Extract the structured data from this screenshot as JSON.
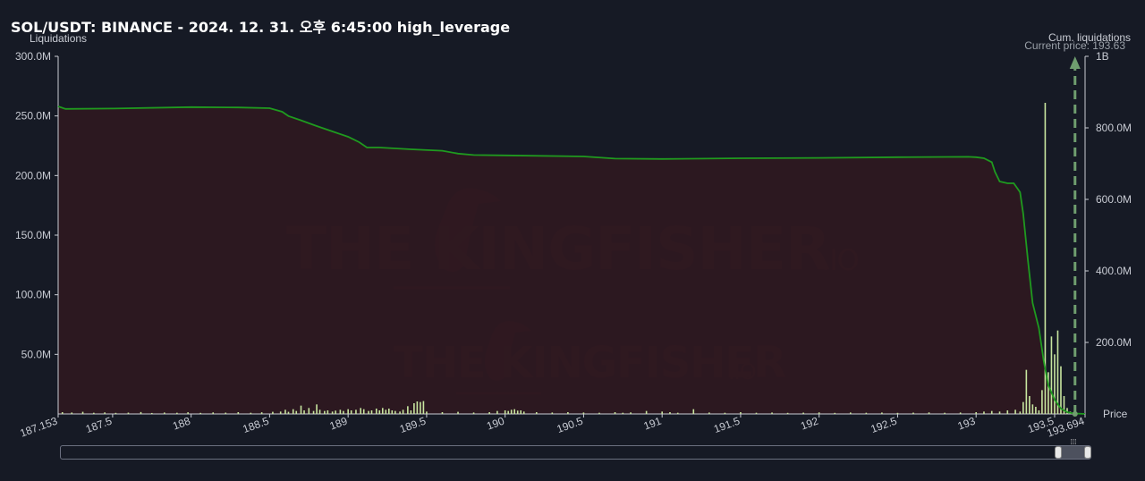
{
  "title": "SOL/USDT: BINANCE - 2024. 12. 31. 오후 6:45:00 high_leverage",
  "y_left_title": "Liquidations",
  "y_right_title": "Cum. liquidations",
  "x_axis_title": "Price",
  "current_price_label": "Current price: 193.63",
  "watermark_text": "THE KINGFISHER",
  "watermark_suffix": ".IO",
  "colors": {
    "background": "#161a25",
    "area_fill": "#2f1820",
    "cum_line": "#1f9a1f",
    "bars": "#c8e6a0",
    "current_price_line": "#6f9e6f",
    "axis": "#c9ccd4"
  },
  "chart_data": {
    "type": "bar",
    "x_range": [
      187.153,
      193.694
    ],
    "x_ticks": [
      "187.153",
      "187.5",
      "188",
      "188.5",
      "189",
      "189.5",
      "190",
      "190.5",
      "191",
      "191.5",
      "192",
      "192.5",
      "193",
      "193.5",
      "193.694"
    ],
    "x_tick_values": [
      187.153,
      187.5,
      188,
      188.5,
      189,
      189.5,
      190,
      190.5,
      191,
      191.5,
      192,
      192.5,
      193,
      193.5,
      193.694
    ],
    "y_left": {
      "label": "Liquidations",
      "range": [
        0,
        300000000
      ],
      "ticks": [
        "300.0M",
        "250.0M",
        "200.0M",
        "150.0M",
        "100.0M",
        "50.0M"
      ],
      "tick_values": [
        300000000,
        250000000,
        200000000,
        150000000,
        100000000,
        50000000
      ]
    },
    "y_right": {
      "label": "Cum. liquidations",
      "range": [
        0,
        1000000000
      ],
      "ticks": [
        "1B",
        "800.0M",
        "600.0M",
        "400.0M",
        "200.0M"
      ],
      "tick_values": [
        1000000000,
        800000000,
        600000000,
        400000000,
        200000000
      ]
    },
    "current_price": 193.63,
    "series": [
      {
        "name": "Liquidations",
        "kind": "bar",
        "points": [
          [
            187.18,
            1500000
          ],
          [
            187.24,
            1200000
          ],
          [
            187.31,
            1800000
          ],
          [
            187.38,
            1000000
          ],
          [
            187.45,
            1300000
          ],
          [
            187.52,
            900000
          ],
          [
            187.6,
            1100000
          ],
          [
            187.68,
            1600000
          ],
          [
            187.75,
            800000
          ],
          [
            187.83,
            1200000
          ],
          [
            187.91,
            1000000
          ],
          [
            187.98,
            1400000
          ],
          [
            188.06,
            900000
          ],
          [
            188.14,
            1300000
          ],
          [
            188.22,
            1100000
          ],
          [
            188.3,
            1500000
          ],
          [
            188.38,
            1000000
          ],
          [
            188.45,
            1400000
          ],
          [
            188.52,
            1800000
          ],
          [
            188.57,
            2000000
          ],
          [
            188.6,
            3500000
          ],
          [
            188.62,
            1800000
          ],
          [
            188.65,
            4000000
          ],
          [
            188.67,
            2500000
          ],
          [
            188.7,
            7000000
          ],
          [
            188.72,
            3000000
          ],
          [
            188.75,
            5000000
          ],
          [
            188.78,
            2500000
          ],
          [
            188.8,
            8000000
          ],
          [
            188.82,
            3500000
          ],
          [
            188.85,
            2500000
          ],
          [
            188.87,
            3000000
          ],
          [
            188.9,
            2000000
          ],
          [
            188.92,
            2800000
          ],
          [
            188.95,
            3500000
          ],
          [
            188.97,
            2500000
          ],
          [
            189.0,
            4000000
          ],
          [
            189.02,
            3000000
          ],
          [
            189.05,
            3500000
          ],
          [
            189.08,
            5000000
          ],
          [
            189.1,
            4000000
          ],
          [
            189.13,
            2500000
          ],
          [
            189.15,
            3000000
          ],
          [
            189.18,
            4500000
          ],
          [
            189.2,
            3000000
          ],
          [
            189.22,
            5000000
          ],
          [
            189.24,
            3500000
          ],
          [
            189.26,
            4500000
          ],
          [
            189.28,
            3000000
          ],
          [
            189.3,
            2500000
          ],
          [
            189.33,
            2000000
          ],
          [
            189.35,
            3500000
          ],
          [
            189.38,
            6500000
          ],
          [
            189.4,
            3000000
          ],
          [
            189.42,
            9000000
          ],
          [
            189.44,
            10500000
          ],
          [
            189.46,
            10000000
          ],
          [
            189.48,
            10800000
          ],
          [
            189.5,
            2000000
          ],
          [
            189.6,
            1500000
          ],
          [
            189.7,
            1800000
          ],
          [
            189.8,
            1200000
          ],
          [
            189.9,
            1500000
          ],
          [
            189.95,
            2500000
          ],
          [
            190.0,
            3000000
          ],
          [
            190.02,
            2500000
          ],
          [
            190.04,
            3500000
          ],
          [
            190.06,
            4000000
          ],
          [
            190.08,
            2800000
          ],
          [
            190.1,
            3000000
          ],
          [
            190.12,
            2000000
          ],
          [
            190.2,
            1500000
          ],
          [
            190.3,
            1200000
          ],
          [
            190.4,
            1500000
          ],
          [
            190.5,
            1200000
          ],
          [
            190.6,
            1000000
          ],
          [
            190.7,
            1500000
          ],
          [
            190.75,
            1000000
          ],
          [
            190.8,
            1300000
          ],
          [
            190.9,
            2500000
          ],
          [
            191.0,
            2000000
          ],
          [
            191.05,
            1500000
          ],
          [
            191.1,
            1000000
          ],
          [
            191.2,
            4000000
          ],
          [
            191.3,
            1200000
          ],
          [
            191.4,
            1000000
          ],
          [
            191.5,
            1500000
          ],
          [
            191.6,
            1000000
          ],
          [
            191.7,
            1200000
          ],
          [
            191.8,
            900000
          ],
          [
            191.9,
            1100000
          ],
          [
            192.0,
            1300000
          ],
          [
            192.1,
            900000
          ],
          [
            192.2,
            1200000
          ],
          [
            192.3,
            1000000
          ],
          [
            192.4,
            1200000
          ],
          [
            192.5,
            900000
          ],
          [
            192.6,
            1100000
          ],
          [
            192.7,
            1300000
          ],
          [
            192.8,
            1000000
          ],
          [
            192.9,
            1200000
          ],
          [
            193.0,
            1500000
          ],
          [
            193.05,
            2000000
          ],
          [
            193.1,
            2500000
          ],
          [
            193.15,
            2000000
          ],
          [
            193.2,
            3000000
          ],
          [
            193.25,
            3500000
          ],
          [
            193.28,
            2000000
          ],
          [
            193.3,
            10000000
          ],
          [
            193.32,
            37000000
          ],
          [
            193.34,
            15000000
          ],
          [
            193.36,
            8000000
          ],
          [
            193.38,
            6000000
          ],
          [
            193.4,
            3000000
          ],
          [
            193.42,
            20000000
          ],
          [
            193.44,
            261000000
          ],
          [
            193.46,
            35000000
          ],
          [
            193.48,
            65000000
          ],
          [
            193.5,
            50000000
          ],
          [
            193.52,
            70000000
          ],
          [
            193.54,
            40000000
          ],
          [
            193.56,
            15000000
          ],
          [
            193.58,
            5000000
          ],
          [
            193.6,
            2000000
          ],
          [
            193.62,
            1000000
          ]
        ]
      },
      {
        "name": "Cum. liquidations",
        "kind": "line",
        "points": [
          [
            187.153,
            860000000
          ],
          [
            187.2,
            853000000
          ],
          [
            187.5,
            854000000
          ],
          [
            188.0,
            858000000
          ],
          [
            188.3,
            857000000
          ],
          [
            188.5,
            855000000
          ],
          [
            188.58,
            845000000
          ],
          [
            188.62,
            833000000
          ],
          [
            188.7,
            821000000
          ],
          [
            188.8,
            805000000
          ],
          [
            188.9,
            790000000
          ],
          [
            189.0,
            775000000
          ],
          [
            189.07,
            760000000
          ],
          [
            189.12,
            745000000
          ],
          [
            189.2,
            745000000
          ],
          [
            189.4,
            740000000
          ],
          [
            189.6,
            736000000
          ],
          [
            189.7,
            728000000
          ],
          [
            189.8,
            724000000
          ],
          [
            190.0,
            723000000
          ],
          [
            190.5,
            720000000
          ],
          [
            190.7,
            714000000
          ],
          [
            191.0,
            713000000
          ],
          [
            191.5,
            715000000
          ],
          [
            192.0,
            716000000
          ],
          [
            192.5,
            718000000
          ],
          [
            192.95,
            719000000
          ],
          [
            193.0,
            718000000
          ],
          [
            193.05,
            715000000
          ],
          [
            193.1,
            704000000
          ],
          [
            193.12,
            677000000
          ],
          [
            193.15,
            650000000
          ],
          [
            193.2,
            645000000
          ],
          [
            193.24,
            645000000
          ],
          [
            193.28,
            620000000
          ],
          [
            193.3,
            560000000
          ],
          [
            193.33,
            430000000
          ],
          [
            193.36,
            310000000
          ],
          [
            193.4,
            240000000
          ],
          [
            193.43,
            150000000
          ],
          [
            193.46,
            80000000
          ],
          [
            193.5,
            40000000
          ],
          [
            193.54,
            15000000
          ],
          [
            193.58,
            5000000
          ],
          [
            193.62,
            1500000
          ],
          [
            193.694,
            0
          ]
        ]
      }
    ],
    "grid": false,
    "legend": "none"
  }
}
